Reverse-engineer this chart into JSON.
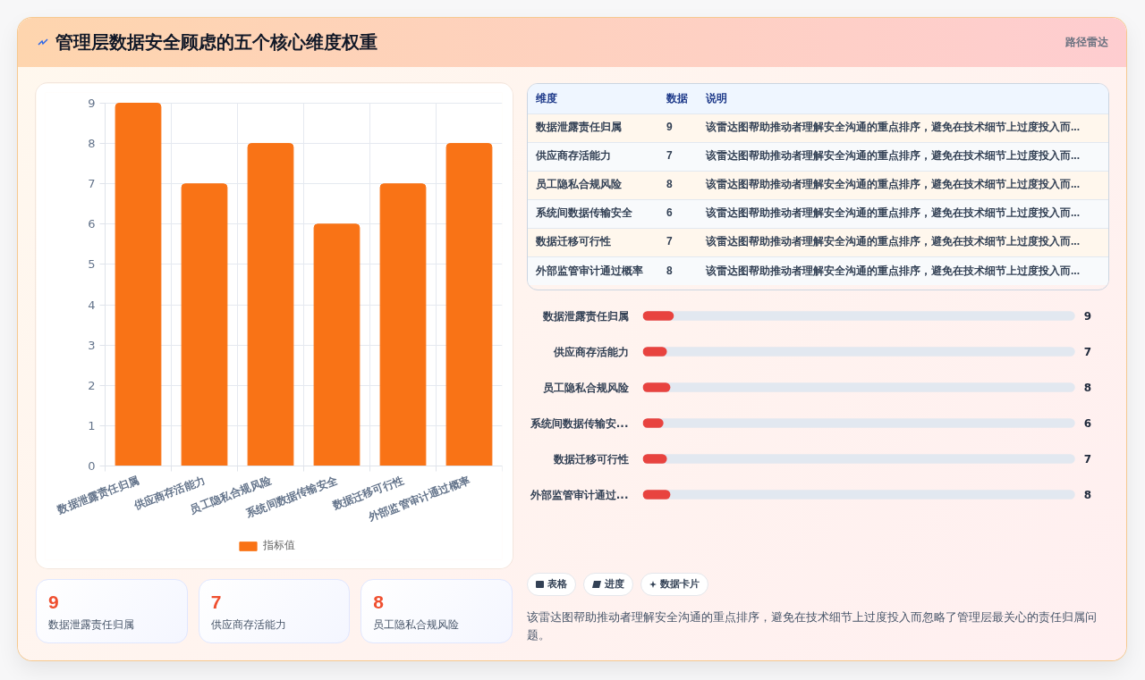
{
  "chart_data": [
    {
      "type": "bar",
      "title": "管理层数据安全顾虑的五个核心维度权重",
      "categories": [
        "数据泄露责任归属",
        "供应商存活能力",
        "员工隐私合规风险",
        "系统间数据传输安全",
        "数据迁移可行性",
        "外部监管审计通过概率"
      ],
      "series": [
        {
          "name": "指标值",
          "color": "#f97316",
          "values": [
            9,
            7,
            8,
            6,
            7,
            8
          ]
        }
      ],
      "ylim": [
        0,
        9
      ],
      "yticks": [
        0,
        1,
        2,
        3,
        4,
        5,
        6,
        7,
        8,
        9
      ],
      "grid": true,
      "legend": "bottom"
    },
    {
      "type": "other",
      "subtitle": "路径雷达",
      "categories": [
        "数据泄露责任归属",
        "供应商存活能力",
        "员工隐私合规风险",
        "系统间数据传输安全",
        "数据迁移可行性",
        "外部监管审计通过概率"
      ],
      "values": [
        9,
        7,
        8,
        6,
        7,
        8
      ],
      "data_labels": true,
      "annotations": [
        "维度",
        "数据",
        "说明",
        "该雷达图帮助推动者理解安全沟通的重点排序，避免在技术细节上过度投入而...",
        "该雷达图帮助推动者理解安全沟通的重点排序，避免在技术细节上过度投入而...",
        "该雷达图帮助推动者理解安全沟通的重点排序，避免在技术细节上过度投入而...",
        "该雷达图帮助推动者理解安全沟通的重点排序，避免在技术细节上过度投入而...",
        "该雷达图帮助推动者理解安全沟通的重点排序，避免在技术细节上过度投入而...",
        "该雷达图帮助推动者理解安全沟通的重点排序，避免在技术细节上过度投入而..."
      ]
    },
    {
      "type": "bar",
      "orientation": "horizontal",
      "categories": [
        "数据泄露责任归属",
        "供应商存活能力",
        "员工隐私合规风险",
        "系统间数据传输安...",
        "数据迁移可行性",
        "外部监管审计通过..."
      ],
      "series": [
        {
          "color": "#e8433f",
          "values": [
            9,
            7,
            8,
            6,
            7,
            8
          ]
        }
      ],
      "xlim": [
        0,
        125
      ],
      "data_labels": true,
      "tick_labels": "y"
    },
    {
      "type": "other",
      "categories": [
        "数据泄露责任归属",
        "供应商存活能力",
        "员工隐私合规风险"
      ],
      "values": [
        9,
        7,
        8
      ],
      "data_labels": true
    },
    {
      "type": "other",
      "annotations": [
        "表格",
        "进度",
        "数据卡片",
        "该雷达图帮助推动者理解安全沟通的重点排序，避免在技术细节上过度投入而忽略了管理层最关心的责任归属问题。"
      ]
    }
  ]
}
